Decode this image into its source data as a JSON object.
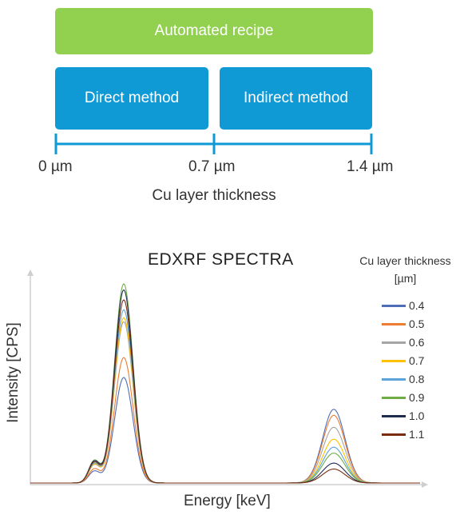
{
  "recipe": {
    "automated_label": "Automated recipe",
    "direct_label": "Direct method",
    "indirect_label": "Indirect method",
    "ticks": [
      "0 µm",
      "0.7 µm",
      "1.4 µm"
    ],
    "axis_title": "Cu layer thickness",
    "colors": {
      "automated": "#92d050",
      "method": "#0f9ad6"
    }
  },
  "chart_data": {
    "type": "line",
    "title": "EDXRF SPECTRA",
    "xlabel": "Energy [keV]",
    "ylabel": "Intensity [CPS]",
    "legend_title": "Cu layer thickness [µm]",
    "legend_placement": "right",
    "grid": false,
    "ylim": [
      0,
      100
    ],
    "peak_shape": {
      "main_center": 155,
      "main_width": 11.5,
      "shoulder_center": 118,
      "shoulder_width": 7,
      "shoulder_ratio": 0.11,
      "secondary_center": 418,
      "secondary_width": 14
    },
    "series": [
      {
        "name": "0.4",
        "color": "#4f6eb5",
        "main_peak": 53,
        "secondary_peak": 37
      },
      {
        "name": "0.5",
        "color": "#ed7d31",
        "main_peak": 63,
        "secondary_peak": 34
      },
      {
        "name": "0.6",
        "color": "#a5a5a5",
        "main_peak": 81,
        "secondary_peak": 28
      },
      {
        "name": "0.7",
        "color": "#ffc000",
        "main_peak": 83,
        "secondary_peak": 22
      },
      {
        "name": "0.8",
        "color": "#5ba3d8",
        "main_peak": 87,
        "secondary_peak": 18
      },
      {
        "name": "0.9",
        "color": "#70ad47",
        "main_peak": 100,
        "secondary_peak": 15
      },
      {
        "name": "1.0",
        "color": "#1f2d50",
        "main_peak": 97,
        "secondary_peak": 10
      },
      {
        "name": "1.1",
        "color": "#7a2c10",
        "main_peak": 92,
        "secondary_peak": 7
      }
    ]
  }
}
